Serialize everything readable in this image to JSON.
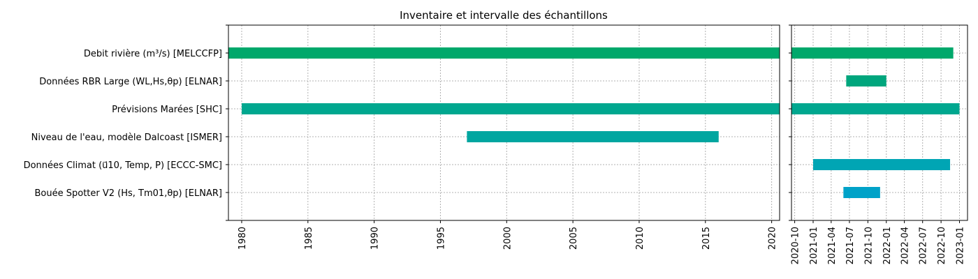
{
  "chart_data": {
    "type": "gantt",
    "title": "Inventaire et intervalle des échantillons",
    "rows": [
      {
        "label": "Debit rivière ($m^3/s$) [MELCCFP]",
        "display": "Debit rivière (m³/s) [MELCCFP]",
        "color": "#00a86b"
      },
      {
        "label": "Données RBR Large (WL,Hs,$\\theta_p$) [ELNAR]",
        "display": "Données RBR Large (WL,Hs,θp) [ELNAR]",
        "color": "#00a67d"
      },
      {
        "label": "Prévisions Marées [SHC]",
        "display": "Prévisions Marées [SHC]",
        "color": "#00a78f"
      },
      {
        "label": "Niveau de l'eau, modèle Dalcoast [ISMER]",
        "display": "Niveau de l'eau, modèle Dalcoast [ISMER]",
        "color": "#00a6a0"
      },
      {
        "label": "Données Climat ($\\vec{u}_{10}$, Temp, P) [ECCC-SMC]",
        "display": "Données Climat (u⃗10, Temp, P) [ECCC-SMC]",
        "color": "#00a5b4"
      },
      {
        "label": "Bouée Spotter V2 (Hs, Tm01,$\\theta_p$) [ELNAR]",
        "display": "Bouée Spotter V2 (Hs, Tm01,θp) [ELNAR]",
        "color": "#00a2c8"
      }
    ],
    "left_panel": {
      "xlim": [
        1979.0,
        2020.6
      ],
      "xticks": [
        "1980",
        "1985",
        "1990",
        "1995",
        "2000",
        "2005",
        "2010",
        "2015",
        "2020"
      ],
      "bars": [
        {
          "row": 0,
          "start": 1979.0,
          "end": 2020.6
        },
        {
          "row": 2,
          "start": 1980.0,
          "end": 2020.6
        },
        {
          "row": 3,
          "start": 1997.0,
          "end": 2016.0
        }
      ]
    },
    "right_panel": {
      "xlim": [
        "2020-09-15",
        "2023-02-10"
      ],
      "xticks": [
        "2020-10",
        "2021-01",
        "2021-04",
        "2021-07",
        "2021-10",
        "2022-01",
        "2022-04",
        "2022-07",
        "2022-10",
        "2023-01"
      ],
      "bars": [
        {
          "row": 0,
          "start": "2020-09-15",
          "end": "2022-12-01"
        },
        {
          "row": 1,
          "start": "2021-06-15",
          "end": "2022-01-01"
        },
        {
          "row": 2,
          "start": "2020-09-15",
          "end": "2023-01-01"
        },
        {
          "row": 4,
          "start": "2021-01-01",
          "end": "2022-11-15"
        },
        {
          "row": 5,
          "start": "2021-06-01",
          "end": "2021-12-01"
        }
      ]
    },
    "grid": true
  }
}
